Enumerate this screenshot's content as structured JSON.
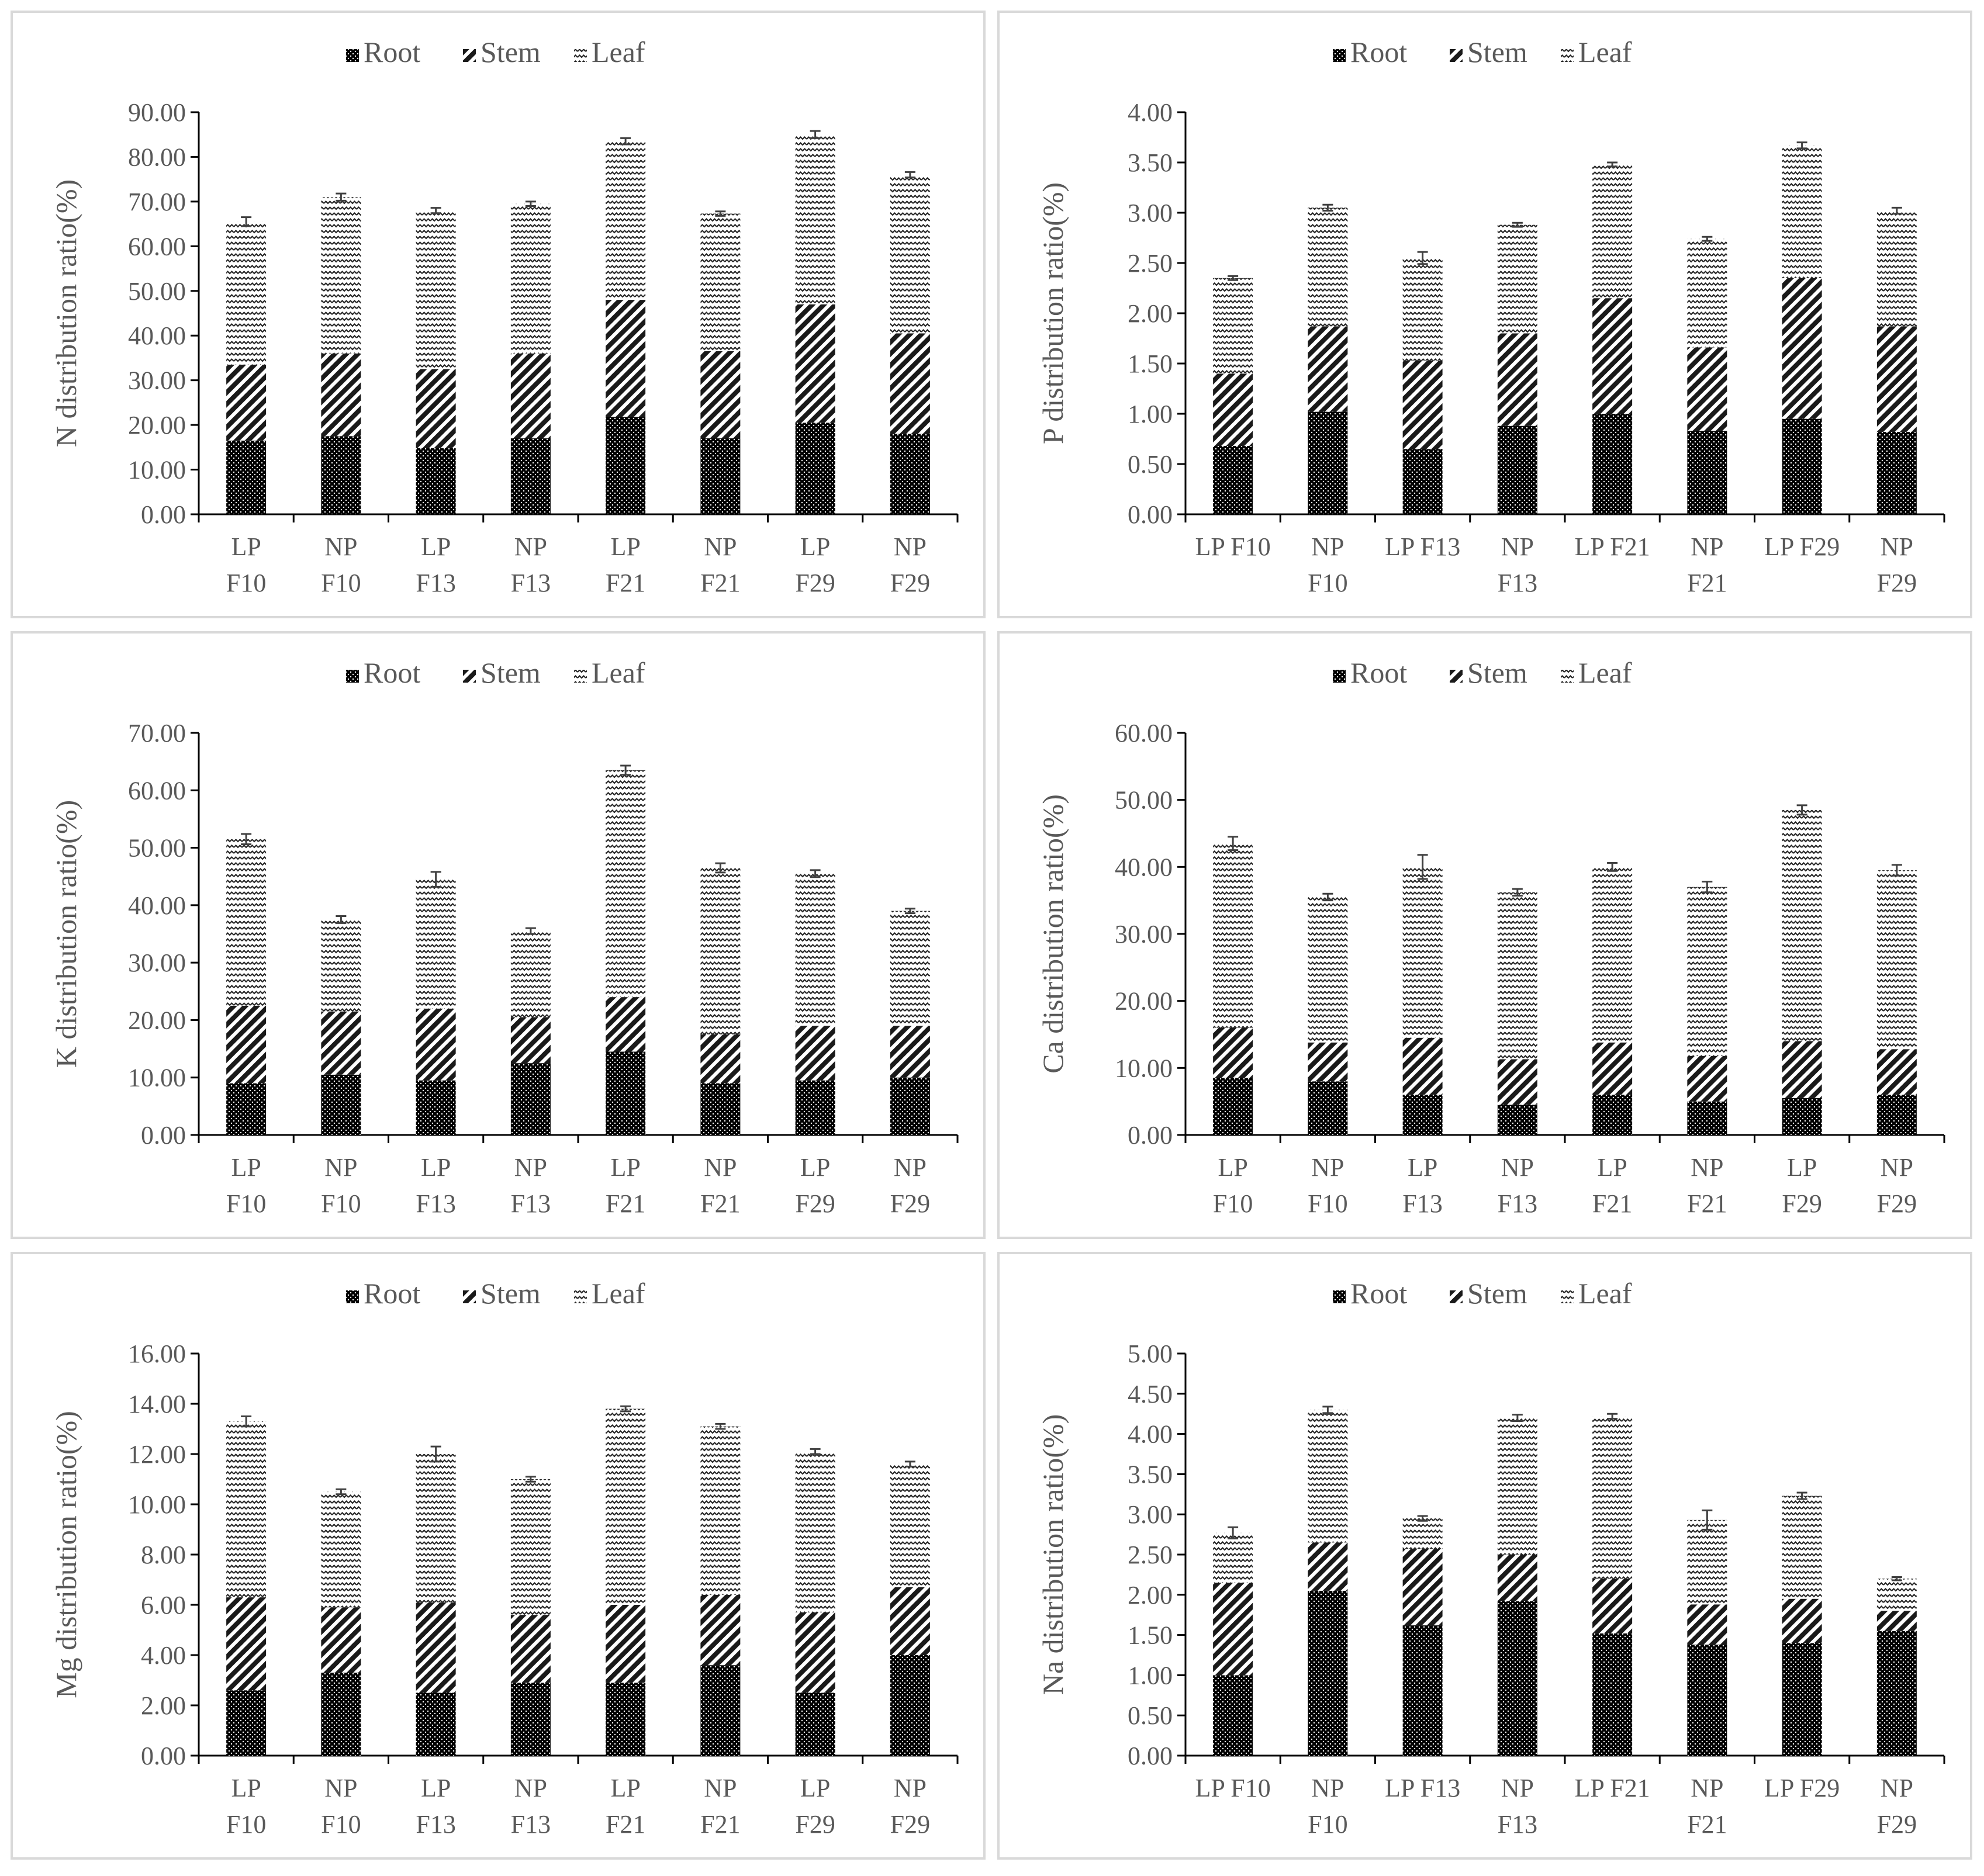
{
  "legend": [
    "Root",
    "Stem",
    "Leaf"
  ],
  "chart_data": [
    {
      "type": "bar",
      "stacked": true,
      "title": "",
      "xlabel": "",
      "ylabel": "N distribution ratio(%)",
      "ylim": [
        0,
        90
      ],
      "ytick_step": 10,
      "categories": [
        "LP F10",
        "NP F10",
        "LP F13",
        "NP F13",
        "LP F21",
        "NP F21",
        "LP F29",
        "NP F29"
      ],
      "category_lines": [
        [
          "LP",
          "F10"
        ],
        [
          "NP",
          "F10"
        ],
        [
          "LP",
          "F13"
        ],
        [
          "NP",
          "F13"
        ],
        [
          "LP",
          "F21"
        ],
        [
          "NP",
          "F21"
        ],
        [
          "LP",
          "F29"
        ],
        [
          "NP",
          "F29"
        ]
      ],
      "series": [
        {
          "name": "Root",
          "values": [
            16.5,
            17.5,
            14.8,
            17.0,
            21.8,
            17.0,
            20.5,
            18.0
          ]
        },
        {
          "name": "Stem",
          "values": [
            17.0,
            18.5,
            17.7,
            19.0,
            26.2,
            19.5,
            26.5,
            22.5
          ]
        },
        {
          "name": "Leaf",
          "values": [
            32.0,
            35.0,
            35.5,
            33.5,
            35.5,
            30.8,
            38.0,
            35.5
          ]
        }
      ],
      "error": [
        1.0,
        0.8,
        0.6,
        0.5,
        0.7,
        0.5,
        0.8,
        0.6
      ]
    },
    {
      "type": "bar",
      "stacked": true,
      "title": "",
      "xlabel": "",
      "ylabel": "P distribution ratio(%)",
      "ylim": [
        0,
        4
      ],
      "ytick_step": 0.5,
      "categories": [
        "LP F10",
        "NP F10",
        "LP F13",
        "NP F13",
        "LP F21",
        "NP F21",
        "LP F29",
        "NP F29"
      ],
      "category_lines": [
        [
          "LP F10"
        ],
        [
          "NP",
          "F10"
        ],
        [
          "LP F13"
        ],
        [
          "NP",
          "F13"
        ],
        [
          "LP F21"
        ],
        [
          "NP",
          "F21"
        ],
        [
          "LP F29"
        ],
        [
          "NP",
          "F29"
        ]
      ],
      "series": [
        {
          "name": "Root",
          "values": [
            0.68,
            1.02,
            0.65,
            0.88,
            1.0,
            0.83,
            0.95,
            0.82
          ]
        },
        {
          "name": "Stem",
          "values": [
            0.72,
            0.85,
            0.88,
            0.92,
            1.15,
            0.83,
            1.4,
            1.05
          ]
        },
        {
          "name": "Leaf",
          "values": [
            0.95,
            1.18,
            1.02,
            1.08,
            1.33,
            1.08,
            1.32,
            1.15
          ]
        }
      ],
      "error": [
        0.02,
        0.03,
        0.06,
        0.02,
        0.02,
        0.02,
        0.03,
        0.03
      ]
    },
    {
      "type": "bar",
      "stacked": true,
      "title": "",
      "xlabel": "",
      "ylabel": "K distribution ratio(%)",
      "ylim": [
        0,
        70
      ],
      "ytick_step": 10,
      "categories": [
        "LP F10",
        "NP F10",
        "LP F13",
        "NP F13",
        "LP F21",
        "NP F21",
        "LP F29",
        "NP F29"
      ],
      "category_lines": [
        [
          "LP",
          "F10"
        ],
        [
          "NP",
          "F10"
        ],
        [
          "LP",
          "F13"
        ],
        [
          "NP",
          "F13"
        ],
        [
          "LP",
          "F21"
        ],
        [
          "NP",
          "F21"
        ],
        [
          "LP",
          "F29"
        ],
        [
          "NP",
          "F29"
        ]
      ],
      "series": [
        {
          "name": "Root",
          "values": [
            9.0,
            10.5,
            9.5,
            12.5,
            14.5,
            9.0,
            9.5,
            10.0
          ]
        },
        {
          "name": "Stem",
          "values": [
            13.5,
            11.0,
            12.5,
            8.0,
            9.5,
            8.5,
            9.5,
            9.0
          ]
        },
        {
          "name": "Leaf",
          "values": [
            29.0,
            16.0,
            22.5,
            15.0,
            39.5,
            29.0,
            26.5,
            20.0
          ]
        }
      ],
      "error": [
        0.9,
        0.6,
        1.3,
        0.5,
        0.8,
        0.8,
        0.6,
        0.4
      ]
    },
    {
      "type": "bar",
      "stacked": true,
      "title": "",
      "xlabel": "",
      "ylabel": "Ca distribution ratio(%)",
      "ylim": [
        0,
        60
      ],
      "ytick_step": 10,
      "categories": [
        "LP F10",
        "NP F10",
        "LP F13",
        "NP F13",
        "LP F21",
        "NP F21",
        "LP F29",
        "NP F29"
      ],
      "category_lines": [
        [
          "LP",
          "F10"
        ],
        [
          "NP",
          "F10"
        ],
        [
          "LP",
          "F13"
        ],
        [
          "NP",
          "F13"
        ],
        [
          "LP",
          "F21"
        ],
        [
          "NP",
          "F21"
        ],
        [
          "LP",
          "F29"
        ],
        [
          "NP",
          "F29"
        ]
      ],
      "series": [
        {
          "name": "Root",
          "values": [
            8.5,
            8.0,
            6.0,
            4.5,
            6.0,
            5.0,
            5.5,
            6.0
          ]
        },
        {
          "name": "Stem",
          "values": [
            7.5,
            5.8,
            8.5,
            6.8,
            7.8,
            6.8,
            8.5,
            6.8
          ]
        },
        {
          "name": "Leaf",
          "values": [
            27.5,
            21.7,
            25.5,
            24.9,
            26.2,
            25.2,
            34.5,
            26.7
          ]
        }
      ],
      "error": [
        1.0,
        0.5,
        1.8,
        0.5,
        0.6,
        0.8,
        0.7,
        0.8
      ]
    },
    {
      "type": "bar",
      "stacked": true,
      "title": "",
      "xlabel": "",
      "ylabel": "Mg distribution ratio(%)",
      "ylim": [
        0,
        16
      ],
      "ytick_step": 2,
      "categories": [
        "LP F10",
        "NP F10",
        "LP F13",
        "NP F13",
        "LP F21",
        "NP F21",
        "LP F29",
        "NP F29"
      ],
      "category_lines": [
        [
          "LP",
          "F10"
        ],
        [
          "NP",
          "F10"
        ],
        [
          "LP",
          "F13"
        ],
        [
          "NP",
          "F13"
        ],
        [
          "LP",
          "F21"
        ],
        [
          "NP",
          "F21"
        ],
        [
          "LP",
          "F29"
        ],
        [
          "NP",
          "F29"
        ]
      ],
      "series": [
        {
          "name": "Root",
          "values": [
            2.6,
            3.3,
            2.5,
            2.9,
            2.9,
            3.6,
            2.5,
            4.0
          ]
        },
        {
          "name": "Stem",
          "values": [
            3.7,
            2.6,
            3.6,
            2.7,
            3.1,
            2.8,
            3.2,
            2.7
          ]
        },
        {
          "name": "Leaf",
          "values": [
            7.0,
            4.6,
            5.9,
            5.4,
            7.8,
            6.7,
            6.4,
            4.9
          ]
        }
      ],
      "error": [
        0.2,
        0.1,
        0.3,
        0.1,
        0.1,
        0.1,
        0.1,
        0.1
      ]
    },
    {
      "type": "bar",
      "stacked": true,
      "title": "",
      "xlabel": "",
      "ylabel": "Na distribution ratio(%)",
      "ylim": [
        0,
        5
      ],
      "ytick_step": 0.5,
      "categories": [
        "LP F10",
        "NP F10",
        "LP F13",
        "NP F13",
        "LP F21",
        "NP F21",
        "LP F29",
        "NP F29"
      ],
      "category_lines": [
        [
          "LP F10"
        ],
        [
          "NP",
          "F10"
        ],
        [
          "LP F13"
        ],
        [
          "NP",
          "F13"
        ],
        [
          "LP F21"
        ],
        [
          "NP",
          "F21"
        ],
        [
          "LP F29"
        ],
        [
          "NP",
          "F29"
        ]
      ],
      "series": [
        {
          "name": "Root",
          "values": [
            1.0,
            2.05,
            1.62,
            1.92,
            1.52,
            1.38,
            1.4,
            1.55
          ]
        },
        {
          "name": "Stem",
          "values": [
            1.15,
            0.6,
            0.95,
            0.58,
            0.68,
            0.5,
            0.55,
            0.25
          ]
        },
        {
          "name": "Leaf",
          "values": [
            0.62,
            1.65,
            0.38,
            1.7,
            2.02,
            1.05,
            1.28,
            0.4
          ]
        }
      ],
      "error": [
        0.07,
        0.04,
        0.03,
        0.04,
        0.03,
        0.12,
        0.04,
        0.02
      ]
    }
  ]
}
